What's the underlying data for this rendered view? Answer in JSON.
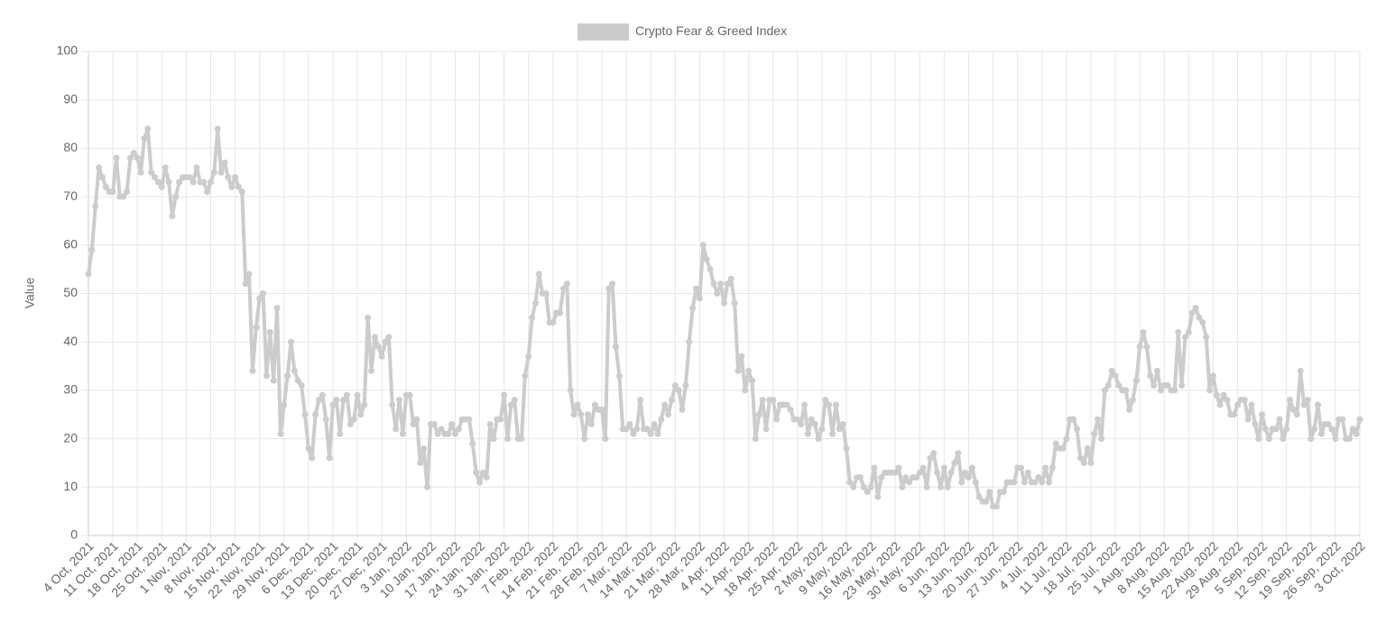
{
  "chart_data": {
    "type": "line",
    "y_label": "Value",
    "ylim": [
      0,
      100
    ],
    "yticks": [
      0,
      10,
      20,
      30,
      40,
      50,
      60,
      70,
      80,
      90,
      100
    ],
    "grid": true,
    "legend": "top",
    "categories": [
      "4 Oct, 2021",
      null,
      null,
      null,
      null,
      null,
      null,
      "11 Oct, 2021",
      null,
      null,
      null,
      null,
      null,
      null,
      "18 Oct, 2021",
      null,
      null,
      null,
      null,
      null,
      null,
      "25 Oct, 2021",
      null,
      null,
      null,
      null,
      null,
      null,
      "1 Nov, 2021",
      null,
      null,
      null,
      null,
      null,
      null,
      "8 Nov, 2021",
      null,
      null,
      null,
      null,
      null,
      null,
      "15 Nov, 2021",
      null,
      null,
      null,
      null,
      null,
      null,
      "22 Nov, 2021",
      null,
      null,
      null,
      null,
      null,
      null,
      "29 Nov, 2021",
      null,
      null,
      null,
      null,
      null,
      null,
      "6 Dec, 2021",
      null,
      null,
      null,
      null,
      null,
      null,
      "13 Dec, 2021",
      null,
      null,
      null,
      null,
      null,
      null,
      "20 Dec, 2021",
      null,
      null,
      null,
      null,
      null,
      null,
      "27 Dec, 2021",
      null,
      null,
      null,
      null,
      null,
      null,
      "3 Jan, 2022",
      null,
      null,
      null,
      null,
      null,
      null,
      "10 Jan, 2022",
      null,
      null,
      null,
      null,
      null,
      null,
      "17 Jan, 2022",
      null,
      null,
      null,
      null,
      null,
      null,
      "24 Jan, 2022",
      null,
      null,
      null,
      null,
      null,
      null,
      "31 Jan, 2022",
      null,
      null,
      null,
      null,
      null,
      null,
      "7 Feb, 2022",
      null,
      null,
      null,
      null,
      null,
      null,
      "14 Feb, 2022",
      null,
      null,
      null,
      null,
      null,
      null,
      "21 Feb, 2022",
      null,
      null,
      null,
      null,
      null,
      null,
      "28 Feb, 2022",
      null,
      null,
      null,
      null,
      null,
      null,
      "7 Mar, 2022",
      null,
      null,
      null,
      null,
      null,
      null,
      "14 Mar, 2022",
      null,
      null,
      null,
      null,
      null,
      null,
      "21 Mar, 2022",
      null,
      null,
      null,
      null,
      null,
      null,
      "28 Mar, 2022",
      null,
      null,
      null,
      null,
      null,
      null,
      "4 Apr, 2022",
      null,
      null,
      null,
      null,
      null,
      null,
      "11 Apr, 2022",
      null,
      null,
      null,
      null,
      null,
      null,
      "18 Apr, 2022",
      null,
      null,
      null,
      null,
      null,
      null,
      "25 Apr, 2022",
      null,
      null,
      null,
      null,
      null,
      null,
      "2 May, 2022",
      null,
      null,
      null,
      null,
      null,
      null,
      "9 May, 2022",
      null,
      null,
      null,
      null,
      null,
      null,
      "16 May, 2022",
      null,
      null,
      null,
      null,
      null,
      null,
      "23 May, 2022",
      null,
      null,
      null,
      null,
      null,
      null,
      "30 May, 2022",
      null,
      null,
      null,
      null,
      null,
      null,
      "6 Jun, 2022",
      null,
      null,
      null,
      null,
      null,
      null,
      "13 Jun, 2022",
      null,
      null,
      null,
      null,
      null,
      null,
      "20 Jun, 2022",
      null,
      null,
      null,
      null,
      null,
      null,
      "27 Jun, 2022",
      null,
      null,
      null,
      null,
      null,
      null,
      "4 Jul, 2022",
      null,
      null,
      null,
      null,
      null,
      null,
      "11 Jul, 2022",
      null,
      null,
      null,
      null,
      null,
      null,
      "18 Jul, 2022",
      null,
      null,
      null,
      null,
      null,
      null,
      "25 Jul, 2022",
      null,
      null,
      null,
      null,
      null,
      null,
      "1 Aug, 2022",
      null,
      null,
      null,
      null,
      null,
      null,
      "8 Aug, 2022",
      null,
      null,
      null,
      null,
      null,
      null,
      "15 Aug, 2022",
      null,
      null,
      null,
      null,
      null,
      null,
      "22 Aug, 2022",
      null,
      null,
      null,
      null,
      null,
      null,
      "29 Aug, 2022",
      null,
      null,
      null,
      null,
      null,
      null,
      "5 Sep, 2022",
      null,
      null,
      null,
      null,
      null,
      null,
      "12 Sep, 2022",
      null,
      null,
      null,
      null,
      null,
      null,
      "19 Sep, 2022",
      null,
      null,
      null,
      null,
      null,
      null,
      "26 Sep, 2022",
      null,
      null,
      null,
      null,
      null,
      null,
      "3 Oct, 2022"
    ],
    "series": [
      {
        "name": "Crypto Fear & Greed Index",
        "color": "#cccccc",
        "values": [
          54,
          59,
          68,
          76,
          74,
          72,
          71,
          71,
          78,
          70,
          70,
          71,
          78,
          79,
          78,
          75,
          82,
          84,
          75,
          74,
          73,
          72,
          76,
          73,
          66,
          70,
          73,
          74,
          74,
          74,
          73,
          76,
          73,
          73,
          71,
          73,
          75,
          84,
          75,
          77,
          74,
          72,
          74,
          72,
          71,
          52,
          54,
          34,
          43,
          49,
          50,
          33,
          42,
          32,
          47,
          21,
          27,
          33,
          40,
          34,
          32,
          31,
          25,
          18,
          16,
          25,
          28,
          29,
          24,
          16,
          27,
          28,
          21,
          28,
          29,
          23,
          24,
          29,
          25,
          27,
          45,
          34,
          41,
          39,
          37,
          40,
          41,
          27,
          22,
          28,
          21,
          29,
          29,
          23,
          24,
          15,
          18,
          10,
          23,
          23,
          21,
          22,
          21,
          21,
          23,
          21,
          22,
          24,
          24,
          24,
          19,
          13,
          11,
          13,
          12,
          23,
          20,
          24,
          24,
          29,
          20,
          27,
          28,
          20,
          20,
          33,
          37,
          45,
          48,
          54,
          50,
          50,
          44,
          44,
          46,
          46,
          51,
          52,
          30,
          25,
          27,
          25,
          20,
          25,
          23,
          27,
          26,
          26,
          20,
          51,
          52,
          39,
          33,
          22,
          22,
          23,
          21,
          22,
          28,
          22,
          22,
          21,
          23,
          21,
          24,
          27,
          25,
          28,
          31,
          30,
          26,
          31,
          40,
          47,
          51,
          49,
          60,
          57,
          55,
          52,
          50,
          52,
          48,
          52,
          53,
          48,
          34,
          37,
          30,
          34,
          32,
          20,
          25,
          28,
          22,
          28,
          28,
          24,
          27,
          27,
          27,
          26,
          24,
          24,
          23,
          27,
          21,
          24,
          23,
          20,
          22,
          28,
          27,
          21,
          27,
          22,
          23,
          18,
          11,
          10,
          12,
          12,
          10,
          9,
          10,
          14,
          8,
          12,
          13,
          13,
          13,
          13,
          14,
          10,
          12,
          11,
          12,
          12,
          13,
          14,
          10,
          16,
          17,
          13,
          10,
          14,
          10,
          13,
          15,
          17,
          11,
          13,
          12,
          14,
          11,
          8,
          7,
          7,
          9,
          6,
          6,
          9,
          9,
          11,
          11,
          11,
          14,
          14,
          11,
          13,
          11,
          11,
          12,
          11,
          14,
          11,
          14,
          19,
          18,
          18,
          20,
          24,
          24,
          22,
          16,
          15,
          18,
          15,
          21,
          24,
          20,
          30,
          31,
          34,
          33,
          31,
          30,
          30,
          26,
          28,
          32,
          39,
          42,
          39,
          33,
          31,
          34,
          30,
          31,
          31,
          30,
          30,
          42,
          31,
          41,
          42,
          46,
          47,
          45,
          44,
          41,
          30,
          33,
          29,
          27,
          29,
          28,
          25,
          25,
          27,
          28,
          28,
          24,
          27,
          23,
          20,
          25,
          22,
          20,
          22,
          22,
          24,
          20,
          22,
          28,
          26,
          25,
          34,
          27,
          28,
          20,
          22,
          27,
          21,
          23,
          23,
          22,
          20,
          24,
          24,
          20,
          20,
          22,
          21,
          24
        ]
      }
    ]
  }
}
